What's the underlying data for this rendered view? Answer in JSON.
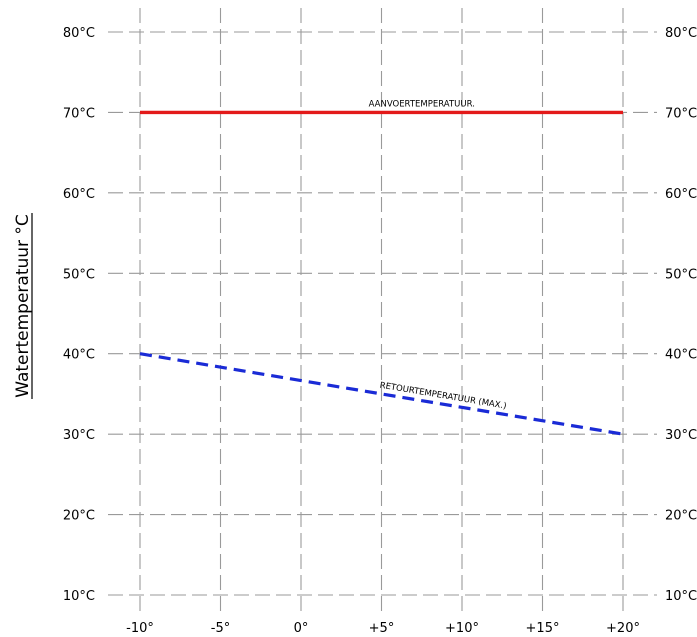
{
  "chart_data": {
    "type": "line",
    "xlabel": "",
    "ylabel": "Watertemperatuur °C",
    "xlim": [
      -10,
      20
    ],
    "ylim": [
      10,
      80
    ],
    "x_ticks": [
      -10,
      -5,
      0,
      5,
      10,
      15,
      20
    ],
    "x_tick_labels": [
      "-10°",
      "-5°",
      "0°",
      "+5°",
      "+10°",
      "+15°",
      "+20°"
    ],
    "y_ticks": [
      80,
      70,
      60,
      50,
      40,
      30,
      20,
      10
    ],
    "y_tick_labels": [
      "80°C",
      "70°C",
      "60°C",
      "50°C",
      "40°C",
      "30°C",
      "20°C",
      "10°C"
    ],
    "grid": true,
    "series": [
      {
        "name": "AANVOERTEMPERATUUR.",
        "x": [
          -10,
          20
        ],
        "y": [
          70,
          70
        ],
        "color": "#e31a1a",
        "style": "solid"
      },
      {
        "name": "RETOURTEMPERATUUR (MAX.)",
        "x": [
          -10,
          20
        ],
        "y": [
          40,
          30
        ],
        "color": "#1a2bd6",
        "style": "dashed"
      }
    ]
  }
}
